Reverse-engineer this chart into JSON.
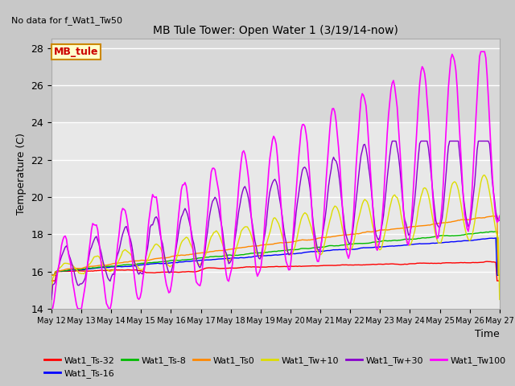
{
  "title": "MB Tule Tower: Open Water 1 (3/19/14-now)",
  "no_data_text": "No data for f_Wat1_Tw50",
  "xlabel": "Time",
  "ylabel": "Temperature (C)",
  "ylim": [
    14,
    28.5
  ],
  "x_tick_labels": [
    "May 12",
    "May 13",
    "May 14",
    "May 15",
    "May 16",
    "May 17",
    "May 18",
    "May 19",
    "May 20",
    "May 21",
    "May 22",
    "May 23",
    "May 24",
    "May 25",
    "May 26",
    "May 27"
  ],
  "series_colors": {
    "Wat1_Ts-32": "#ff0000",
    "Wat1_Ts-16": "#0000ff",
    "Wat1_Ts-8": "#00bb00",
    "Wat1_Ts0": "#ff8800",
    "Wat1_Tw+10": "#dddd00",
    "Wat1_Tw+30": "#8800cc",
    "Wat1_Tw100": "#ff00ff"
  },
  "legend_label": "MB_tule",
  "legend_box_color": "#ffffcc",
  "legend_box_edge": "#cc8800",
  "fig_bg_color": "#c8c8c8",
  "plot_bg_color": "#e8e8e8",
  "band_color": "#d8d8d8",
  "grid_color": "#ffffff",
  "yticks": [
    14,
    16,
    18,
    20,
    22,
    24,
    26,
    28
  ]
}
